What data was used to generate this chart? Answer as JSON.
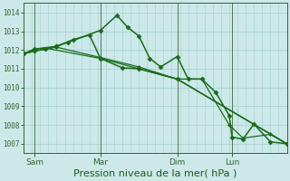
{
  "bg_color": "#cce8e8",
  "grid_color": "#aad4d4",
  "line_color": "#1a6b1a",
  "marker_color": "#1a6b1a",
  "axis_color": "#336633",
  "tick_color": "#336633",
  "xlabel": "Pression niveau de la mer( hPa )",
  "xlabel_color": "#1a5c1a",
  "xlabel_fontsize": 8.0,
  "yticks": [
    1007,
    1008,
    1009,
    1010,
    1011,
    1012,
    1013,
    1014
  ],
  "ylim": [
    1006.5,
    1014.5
  ],
  "xlim": [
    0,
    96
  ],
  "xtick_labels": [
    "Sam",
    "Mar",
    "Dim",
    "Lun"
  ],
  "xtick_positions": [
    4,
    28,
    56,
    76
  ],
  "vlines": [
    4,
    28,
    56,
    76
  ],
  "vline_color": "#557755",
  "num_minor_vgrid": 32,
  "series": [
    {
      "x": [
        0,
        4,
        8,
        12,
        16,
        28,
        34,
        38,
        42,
        46,
        50,
        56,
        60,
        65,
        70,
        75,
        76,
        80,
        84,
        90,
        96
      ],
      "y": [
        1011.8,
        1011.95,
        1012.05,
        1012.2,
        1012.4,
        1013.05,
        1013.85,
        1013.2,
        1012.75,
        1011.55,
        1011.1,
        1011.65,
        1010.45,
        1010.45,
        1009.75,
        1008.5,
        1007.35,
        1007.25,
        1008.05,
        1007.1,
        1007.0
      ],
      "marker": "D",
      "marker_size": 2.5,
      "linewidth": 1.1
    },
    {
      "x": [
        0,
        4,
        8,
        12,
        28,
        42,
        56,
        65,
        75,
        80,
        90,
        96
      ],
      "y": [
        1011.8,
        1011.95,
        1012.05,
        1012.15,
        1011.6,
        1011.1,
        1010.45,
        1010.45,
        1008.0,
        1007.3,
        1007.5,
        1007.0
      ],
      "marker": "D",
      "marker_size": 2.0,
      "linewidth": 0.9
    },
    {
      "x": [
        0,
        4,
        12,
        18,
        24,
        28,
        36,
        42,
        56,
        96
      ],
      "y": [
        1011.8,
        1012.05,
        1012.2,
        1012.55,
        1012.8,
        1011.55,
        1011.05,
        1011.0,
        1010.45,
        1007.0
      ],
      "marker": "D",
      "marker_size": 2.5,
      "linewidth": 1.1
    },
    {
      "x": [
        0,
        4,
        8,
        28,
        56,
        96
      ],
      "y": [
        1011.8,
        1012.05,
        1012.1,
        1011.55,
        1010.45,
        1007.0
      ],
      "marker": null,
      "marker_size": 0,
      "linewidth": 0.9
    }
  ]
}
